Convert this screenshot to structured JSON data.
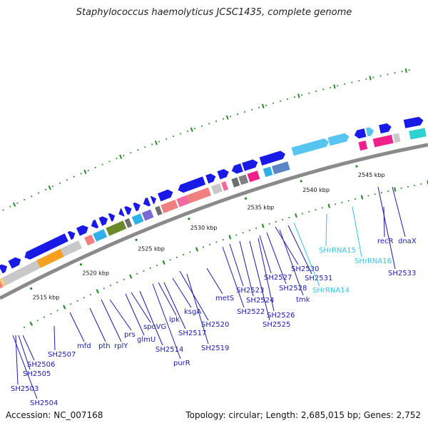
{
  "header": {
    "title": "Staphylococcus haemolyticus JCSC1435, complete genome"
  },
  "footer": {
    "accession": "Accession: NC_007168",
    "summary": "Topology: circular; Length: 2,685,015 bp; Genes: 2,752"
  },
  "colors": {
    "backbone": "#8a8a8a",
    "forward_gene": "#1a1ae6",
    "tick": "#2a8a2a",
    "label_gene": "#1a1ab0",
    "label_rna": "#33c3e6"
  },
  "scale": {
    "ticks": [
      "2515 kbp",
      "2520 kbp",
      "2525 kbp",
      "2530 kbp",
      "2535 kbp",
      "2540 kbp",
      "2545 kbp"
    ]
  },
  "genes": [
    {
      "label": "SH2503",
      "type": "gene"
    },
    {
      "label": "SH2504",
      "type": "gene"
    },
    {
      "label": "SH2505",
      "type": "gene"
    },
    {
      "label": "SH2506",
      "type": "gene"
    },
    {
      "label": "SH2507",
      "type": "gene"
    },
    {
      "label": "mfd",
      "type": "gene"
    },
    {
      "label": "pth",
      "type": "gene"
    },
    {
      "label": "rplY",
      "type": "gene"
    },
    {
      "label": "prs",
      "type": "gene"
    },
    {
      "label": "glmU",
      "type": "gene"
    },
    {
      "label": "spoVG",
      "type": "gene"
    },
    {
      "label": "SH2514",
      "type": "gene"
    },
    {
      "label": "purR",
      "type": "gene"
    },
    {
      "label": "ipk",
      "type": "gene"
    },
    {
      "label": "SH2517",
      "type": "gene"
    },
    {
      "label": "ksgA",
      "type": "gene"
    },
    {
      "label": "SH2519",
      "type": "gene"
    },
    {
      "label": "SH2520",
      "type": "gene"
    },
    {
      "label": "metS",
      "type": "gene"
    },
    {
      "label": "SH2522",
      "type": "gene"
    },
    {
      "label": "SH2523",
      "type": "gene"
    },
    {
      "label": "SH2524",
      "type": "gene"
    },
    {
      "label": "SH2525",
      "type": "gene"
    },
    {
      "label": "SH2526",
      "type": "gene"
    },
    {
      "label": "SH2527",
      "type": "gene"
    },
    {
      "label": "SH2528",
      "type": "gene"
    },
    {
      "label": "tmk",
      "type": "gene"
    },
    {
      "label": "SH2530",
      "type": "gene"
    },
    {
      "label": "SH2531",
      "type": "gene"
    },
    {
      "label": "SHrRNA14",
      "type": "rna"
    },
    {
      "label": "SHrRNA15",
      "type": "rna"
    },
    {
      "label": "SHrRNA16",
      "type": "rna"
    },
    {
      "label": "recR",
      "type": "gene"
    },
    {
      "label": "dnaX",
      "type": "gene"
    },
    {
      "label": "SH2533",
      "type": "gene"
    }
  ]
}
